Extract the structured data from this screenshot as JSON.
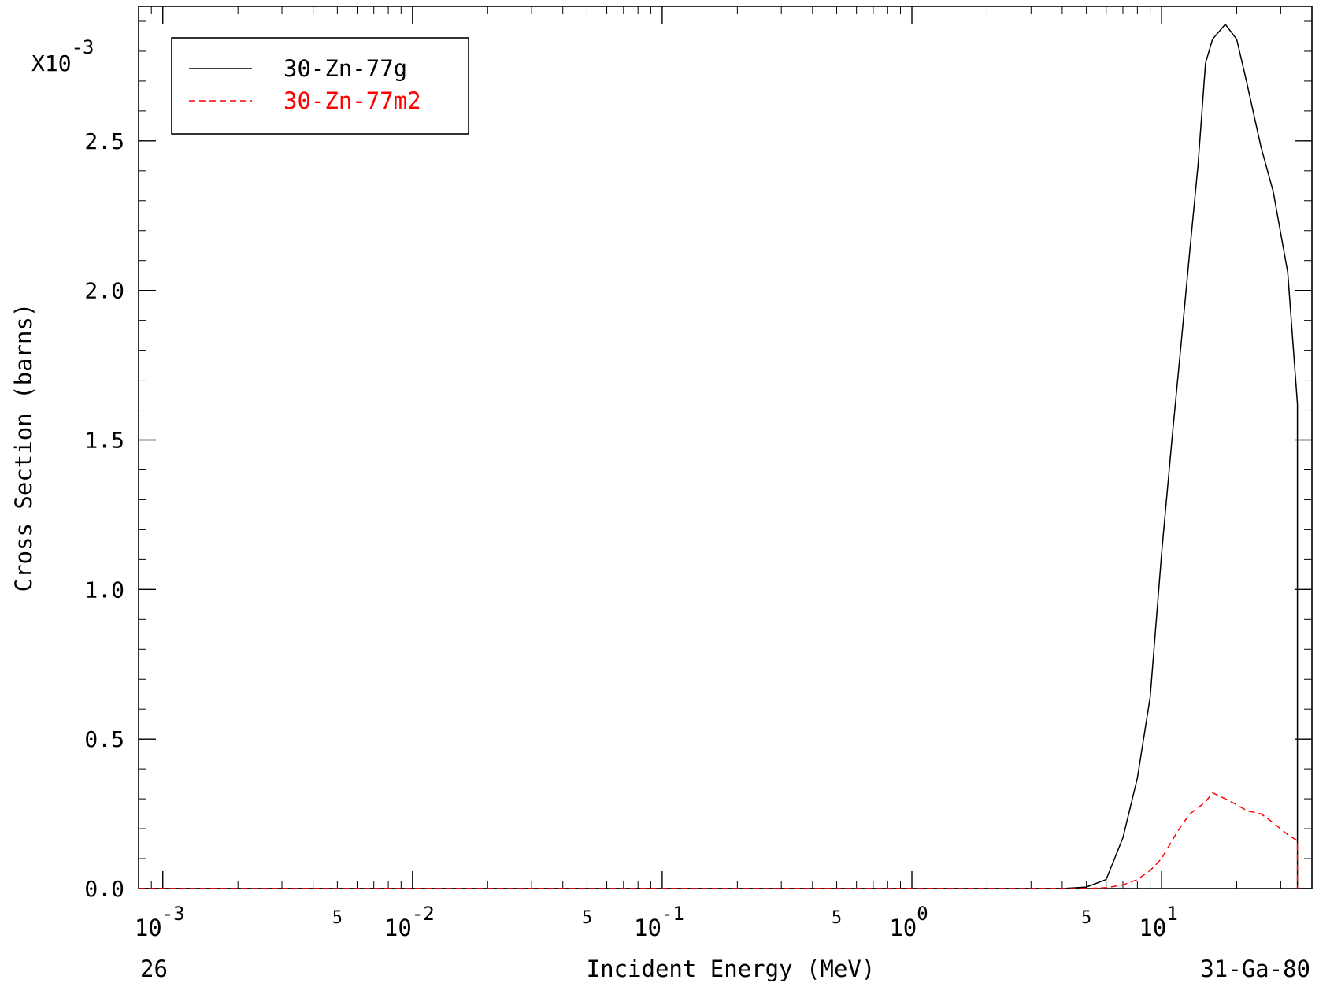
{
  "chart_data": {
    "type": "line",
    "title": "",
    "xlabel": "Incident Energy (MeV)",
    "ylabel": "Cross Section (barns)",
    "y_multiplier": "X10",
    "y_multiplier_exp": "-3",
    "x_scale": "log",
    "xlim": [
      0.0008,
      40
    ],
    "ylim": [
      0,
      2.95
    ],
    "y_ticks": [
      "0.0",
      "0.5",
      "1.0",
      "1.5",
      "2.0",
      "2.5"
    ],
    "x_decades": [
      {
        "base": "10",
        "exp": "-3"
      },
      {
        "base": "10",
        "exp": "-2"
      },
      {
        "base": "10",
        "exp": "-1"
      },
      {
        "base": "10",
        "exp": "0"
      },
      {
        "base": "10",
        "exp": "1"
      }
    ],
    "x_minor_label": "5",
    "corner_left": "26",
    "corner_right": "31-Ga-80",
    "legend_position": "top-left",
    "grid": false,
    "series": [
      {
        "name": "30-Zn-77g",
        "color": "#000000",
        "dash": "solid",
        "x": [
          0.0008,
          4.0,
          5.0,
          6.0,
          7.0,
          8.0,
          9.0,
          10.0,
          11.0,
          12.0,
          13.0,
          14.0,
          15.0,
          16.0,
          18.0,
          20.0,
          22.0,
          25.0,
          28.0,
          32.0,
          35.0,
          35.0
        ],
        "y": [
          0,
          0,
          0.005,
          0.03,
          0.17,
          0.37,
          0.64,
          1.12,
          1.5,
          1.83,
          2.14,
          2.42,
          2.76,
          2.84,
          2.89,
          2.84,
          2.69,
          2.48,
          2.33,
          2.06,
          1.62,
          0
        ]
      },
      {
        "name": "30-Zn-77m2",
        "color": "#ff0000",
        "dash": "dashed",
        "x": [
          0.0008,
          5.0,
          6.0,
          7.0,
          8.0,
          9.0,
          10.0,
          11.0,
          12.0,
          13.0,
          14.0,
          15.0,
          16.0,
          18.0,
          20.0,
          22.0,
          25.0,
          28.0,
          32.0,
          35.0,
          35.0
        ],
        "y": [
          0,
          0,
          0.003,
          0.012,
          0.03,
          0.06,
          0.1,
          0.16,
          0.21,
          0.25,
          0.27,
          0.29,
          0.32,
          0.3,
          0.28,
          0.26,
          0.25,
          0.22,
          0.18,
          0.16,
          0
        ]
      }
    ]
  }
}
